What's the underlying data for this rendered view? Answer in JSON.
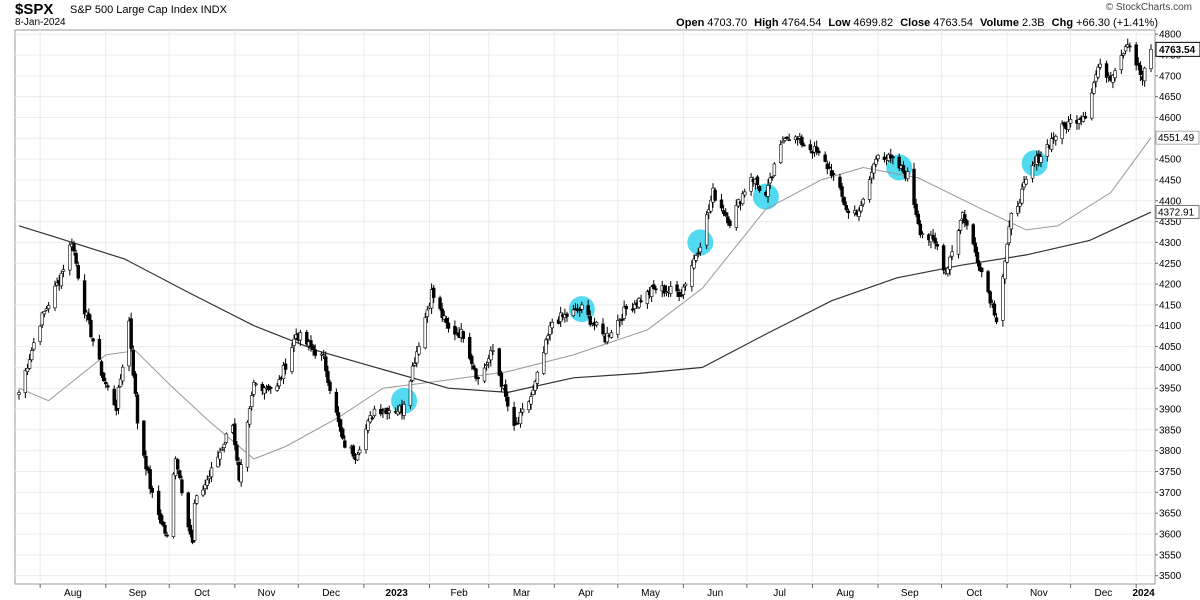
{
  "header": {
    "ticker": "$SPX",
    "index_name": "S&P 500 Large Cap Index  INDX",
    "date": "8-Jan-2024",
    "copyright": "© StockCharts.com",
    "open_label": "Open",
    "open": "4703.70",
    "high_label": "High",
    "high": "4764.54",
    "low_label": "Low",
    "low": "4699.82",
    "close_label": "Close",
    "close": "4763.54",
    "volume_label": "Volume",
    "volume": "2.3B",
    "chg_label": "Chg",
    "chg": "+66.30 (+1.41%)"
  },
  "chart_data": {
    "type": "candlestick",
    "ylim": [
      3480,
      4810
    ],
    "y_ticks": [
      3500,
      3550,
      3600,
      3650,
      3700,
      3750,
      3800,
      3850,
      3900,
      3950,
      4000,
      4050,
      4100,
      4150,
      4200,
      4250,
      4300,
      4350,
      4400,
      4450,
      4500,
      4550,
      4600,
      4650,
      4700,
      4750,
      4800
    ],
    "x_labels": [
      "Aug",
      "Sep",
      "Oct",
      "Nov",
      "Dec",
      "2023",
      "Feb",
      "Mar",
      "Apr",
      "May",
      "Jun",
      "Jul",
      "Aug",
      "Sep",
      "Oct",
      "Nov",
      "Dec",
      "2024"
    ],
    "bold_x_labels": [
      "2023",
      "2024"
    ],
    "start_date": "2022-07-22",
    "end_date": "2024-01-08",
    "close_path": [
      [
        "2022-07-22",
        3940
      ],
      [
        "2022-08-01",
        4110
      ],
      [
        "2022-08-10",
        4210
      ],
      [
        "2022-08-16",
        4305
      ],
      [
        "2022-08-22",
        4140
      ],
      [
        "2022-08-31",
        3970
      ],
      [
        "2022-09-06",
        3905
      ],
      [
        "2022-09-12",
        4110
      ],
      [
        "2022-09-16",
        3870
      ],
      [
        "2022-09-23",
        3690
      ],
      [
        "2022-09-30",
        3590
      ],
      [
        "2022-10-04",
        3790
      ],
      [
        "2022-10-12",
        3575
      ],
      [
        "2022-10-13",
        3670
      ],
      [
        "2022-10-21",
        3750
      ],
      [
        "2022-10-31",
        3870
      ],
      [
        "2022-11-03",
        3720
      ],
      [
        "2022-11-10",
        3960
      ],
      [
        "2022-11-21",
        3950
      ],
      [
        "2022-11-30",
        4080
      ],
      [
        "2022-12-13",
        4020
      ],
      [
        "2022-12-22",
        3820
      ],
      [
        "2022-12-28",
        3790
      ],
      [
        "2023-01-06",
        3900
      ],
      [
        "2023-01-19",
        3900
      ],
      [
        "2023-02-02",
        4180
      ],
      [
        "2023-02-10",
        4090
      ],
      [
        "2023-02-17",
        4080
      ],
      [
        "2023-02-24",
        3970
      ],
      [
        "2023-03-03",
        4040
      ],
      [
        "2023-03-13",
        3850
      ],
      [
        "2023-03-22",
        3940
      ],
      [
        "2023-03-31",
        4110
      ],
      [
        "2023-04-14",
        4140
      ],
      [
        "2023-04-25",
        4070
      ],
      [
        "2023-05-05",
        4140
      ],
      [
        "2023-05-19",
        4190
      ],
      [
        "2023-05-31",
        4180
      ],
      [
        "2023-06-09",
        4300
      ],
      [
        "2023-06-15",
        4420
      ],
      [
        "2023-06-23",
        4350
      ],
      [
        "2023-07-03",
        4460
      ],
      [
        "2023-07-10",
        4410
      ],
      [
        "2023-07-19",
        4560
      ],
      [
        "2023-07-27",
        4540
      ],
      [
        "2023-08-02",
        4520
      ],
      [
        "2023-08-10",
        4470
      ],
      [
        "2023-08-18",
        4370
      ],
      [
        "2023-08-24",
        4380
      ],
      [
        "2023-09-01",
        4520
      ],
      [
        "2023-09-11",
        4480
      ],
      [
        "2023-09-15",
        4460
      ],
      [
        "2023-09-21",
        4330
      ],
      [
        "2023-09-29",
        4290
      ],
      [
        "2023-10-03",
        4230
      ],
      [
        "2023-10-11",
        4370
      ],
      [
        "2023-10-20",
        4230
      ],
      [
        "2023-10-27",
        4120
      ],
      [
        "2023-11-03",
        4360
      ],
      [
        "2023-11-14",
        4490
      ],
      [
        "2023-11-24",
        4560
      ],
      [
        "2023-12-01",
        4590
      ],
      [
        "2023-12-08",
        4610
      ],
      [
        "2023-12-14",
        4720
      ],
      [
        "2023-12-20",
        4700
      ],
      [
        "2023-12-28",
        4785
      ],
      [
        "2024-01-04",
        4690
      ],
      [
        "2024-01-08",
        4763.54
      ]
    ],
    "series": [
      {
        "name": "",
        "color": "#999999",
        "path": [
          [
            "2022-07-22",
            3950
          ],
          [
            "2022-08-05",
            3920
          ],
          [
            "2022-09-01",
            4030
          ],
          [
            "2022-09-15",
            4040
          ],
          [
            "2022-10-01",
            3960
          ],
          [
            "2022-10-20",
            3870
          ],
          [
            "2022-11-10",
            3780
          ],
          [
            "2022-11-25",
            3810
          ],
          [
            "2022-12-20",
            3880
          ],
          [
            "2023-01-10",
            3950
          ],
          [
            "2023-02-10",
            3970
          ],
          [
            "2023-03-10",
            3990
          ],
          [
            "2023-04-10",
            4030
          ],
          [
            "2023-05-15",
            4090
          ],
          [
            "2023-06-10",
            4190
          ],
          [
            "2023-07-10",
            4380
          ],
          [
            "2023-08-05",
            4450
          ],
          [
            "2023-08-25",
            4480
          ],
          [
            "2023-09-20",
            4455
          ],
          [
            "2023-10-20",
            4380
          ],
          [
            "2023-11-10",
            4330
          ],
          [
            "2023-11-25",
            4340
          ],
          [
            "2023-12-20",
            4420
          ],
          [
            "2024-01-08",
            4551.49
          ]
        ]
      },
      {
        "name": "",
        "color": "#333333",
        "path": [
          [
            "2022-07-22",
            4340
          ],
          [
            "2022-08-10",
            4310
          ],
          [
            "2022-09-10",
            4260
          ],
          [
            "2022-10-10",
            4180
          ],
          [
            "2022-11-10",
            4100
          ],
          [
            "2022-12-10",
            4040
          ],
          [
            "2023-01-10",
            3995
          ],
          [
            "2023-02-10",
            3950
          ],
          [
            "2023-03-10",
            3940
          ],
          [
            "2023-04-10",
            3975
          ],
          [
            "2023-05-10",
            3985
          ],
          [
            "2023-06-10",
            4000
          ],
          [
            "2023-07-10",
            4080
          ],
          [
            "2023-08-10",
            4160
          ],
          [
            "2023-09-10",
            4215
          ],
          [
            "2023-10-10",
            4245
          ],
          [
            "2023-11-10",
            4270
          ],
          [
            "2023-12-10",
            4305
          ],
          [
            "2024-01-08",
            4372.91
          ]
        ]
      }
    ],
    "highlights": [
      "2023-01-20",
      "2023-04-14",
      "2023-06-09",
      "2023-07-10",
      "2023-09-11",
      "2023-11-14"
    ],
    "last_price_label": "4763.54",
    "ma_labels": [
      "4551.49",
      "4372.91"
    ]
  }
}
